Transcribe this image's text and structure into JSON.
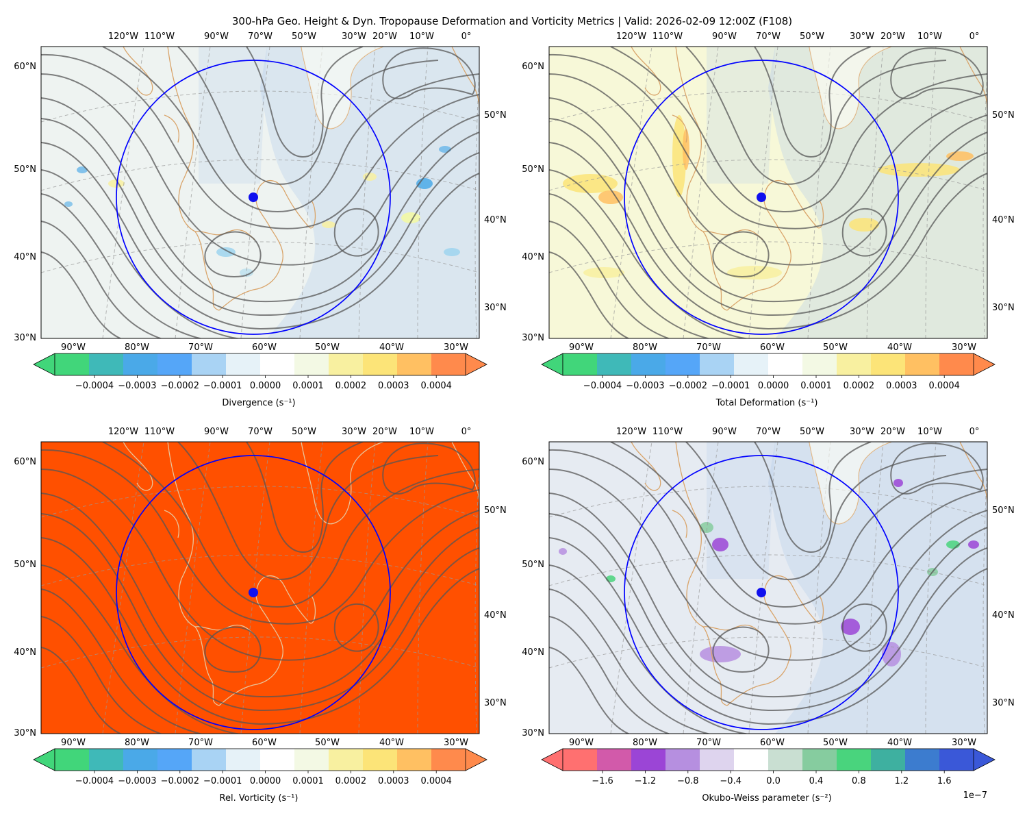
{
  "title": "300-hPa Geo. Height & Dyn. Tropopause Deformation and Vorticity Metrics |  Valid: 2026-02-09 12:00Z (F108)",
  "top_lon_labels": [
    "120°W",
    "110°W",
    "90°W",
    "70°W",
    "50°W",
    "30°W",
    "20°W",
    "10°W",
    "0°"
  ],
  "bottom_lon_labels": [
    "90°W",
    "80°W",
    "70°W",
    "60°W",
    "50°W",
    "40°W",
    "30°W"
  ],
  "left_lat_labels": [
    "60°N",
    "50°N",
    "40°N",
    "30°N"
  ],
  "right_lat_labels": [
    "50°N",
    "40°N",
    "30°N"
  ],
  "center_marker": {
    "lat": 47.0,
    "lon": -61.5
  },
  "ring": {
    "center": "center_marker"
  },
  "colors": {
    "circle": "#0000ff",
    "marker": "#1010ee",
    "coast": "#d9a46a",
    "contour": "#555555",
    "grid": "#999999",
    "vorticity_fill": "#ff5000"
  },
  "panels": [
    {
      "id": "divergence",
      "field_background": "#eef3f1",
      "colorbar": {
        "label": "Divergence (s⁻¹)",
        "ticks": [
          "−0.0004",
          "−0.0003",
          "−0.0002",
          "−0.0001",
          "0.0000",
          "0.0001",
          "0.0002",
          "0.0003",
          "0.0004"
        ],
        "colormap": [
          "#41d67a",
          "#3fb9b8",
          "#4aa9e8",
          "#55a6f8",
          "#a9d3f4",
          "#e6f2f8",
          "#ffffff",
          "#f3f9e4",
          "#f8f0a0",
          "#fce478",
          "#ffc062",
          "#ff8a4c"
        ],
        "extend": "both",
        "offset_label": ""
      }
    },
    {
      "id": "total-deformation",
      "field_background": "#f7f8d8",
      "colorbar": {
        "label": "Total Deformation (s⁻¹)",
        "ticks": [
          "−0.0004",
          "−0.0003",
          "−0.0002",
          "−0.0001",
          "0.0000",
          "0.0001",
          "0.0002",
          "0.0003",
          "0.0004"
        ],
        "colormap": [
          "#41d67a",
          "#3fb9b8",
          "#4aa9e8",
          "#55a6f8",
          "#a9d3f4",
          "#e6f2f8",
          "#ffffff",
          "#f3f9e4",
          "#f8f0a0",
          "#fce478",
          "#ffc062",
          "#ff8a4c"
        ],
        "extend": "both",
        "offset_label": ""
      }
    },
    {
      "id": "relative-vorticity",
      "field_background": "#ff5000",
      "colorbar": {
        "label": "Rel. Vorticity (s⁻¹)",
        "ticks": [
          "−0.0004",
          "−0.0003",
          "−0.0002",
          "−0.0001",
          "0.0000",
          "0.0001",
          "0.0002",
          "0.0003",
          "0.0004"
        ],
        "colormap": [
          "#41d67a",
          "#3fb9b8",
          "#4aa9e8",
          "#55a6f8",
          "#a9d3f4",
          "#e6f2f8",
          "#ffffff",
          "#f3f9e4",
          "#f8f0a0",
          "#fce478",
          "#ffc062",
          "#ff8a4c"
        ],
        "extend": "both",
        "offset_label": ""
      }
    },
    {
      "id": "okubo-weiss",
      "field_background": "#e6ebf2",
      "colorbar": {
        "label": "Okubo-Weiss parameter (s⁻²)",
        "ticks": [
          "−1.6",
          "−1.2",
          "−0.8",
          "−0.4",
          "0.0",
          "0.4",
          "0.8",
          "1.2",
          "1.6"
        ],
        "colormap": [
          "#ff7070",
          "#d25aaa",
          "#9b45d6",
          "#b68fe0",
          "#ded4ee",
          "#ffffff",
          "#c9dfd2",
          "#86cc9f",
          "#49d47d",
          "#3eb0a0",
          "#3c7ccf",
          "#3a58d8"
        ],
        "extend": "both",
        "offset_label": "1e−7"
      }
    }
  ]
}
